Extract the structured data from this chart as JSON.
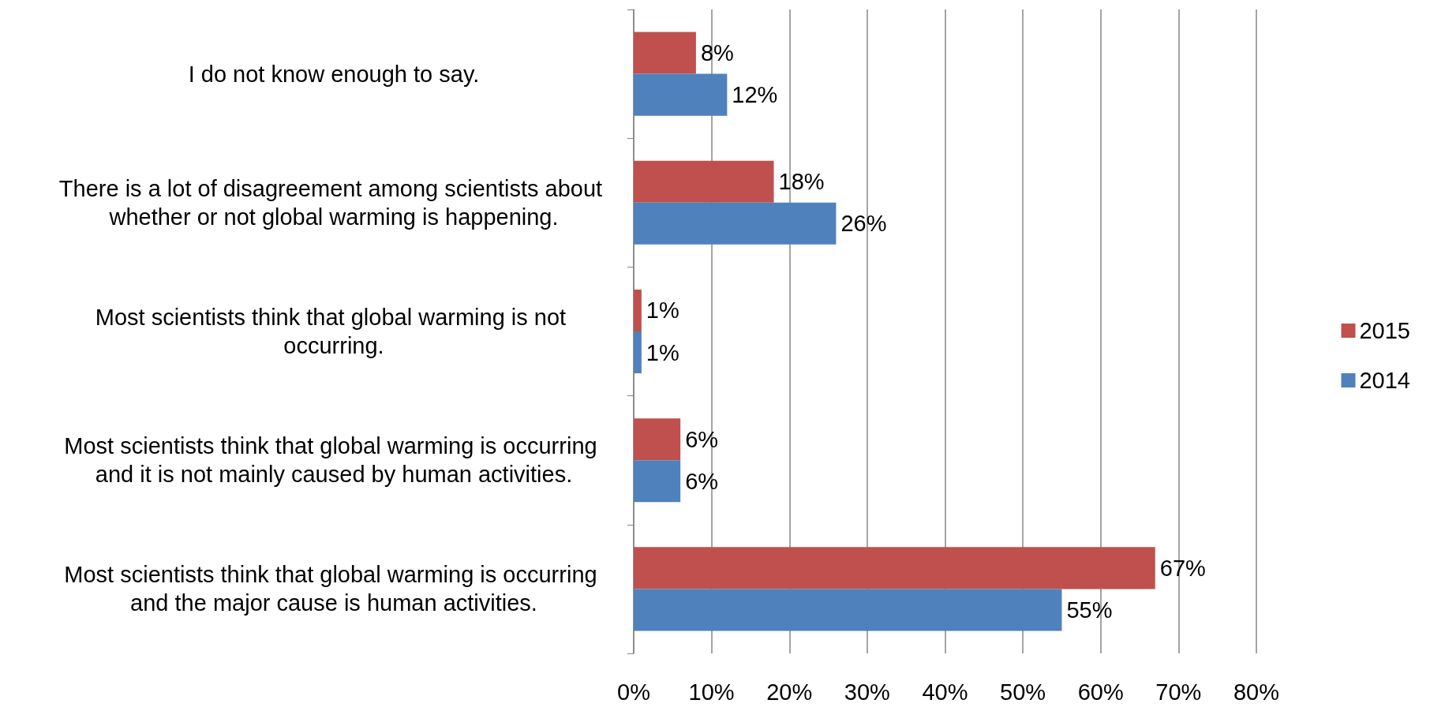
{
  "chart_data": {
    "type": "bar",
    "orientation": "horizontal",
    "categories": [
      "I do not know enough to say.",
      "There is a lot of disagreement among scientists about whether or not global warming is happening.",
      "Most scientists think that global warming is not occurring.",
      "Most scientists think that global warming is occurring and it is not mainly caused by human activities.",
      "Most scientists think that global warming is occurring and the major cause is human activities."
    ],
    "series": [
      {
        "name": "2015",
        "color": "#c0504d",
        "values": [
          8,
          18,
          1,
          6,
          67
        ],
        "value_labels": [
          "8%",
          "18%",
          "1%",
          "6%",
          "67%"
        ]
      },
      {
        "name": "2014",
        "color": "#4f81bd",
        "values": [
          12,
          26,
          1,
          6,
          55
        ],
        "value_labels": [
          "12%",
          "26%",
          "1%",
          "6%",
          "55%"
        ]
      }
    ],
    "xlim": [
      0,
      80
    ],
    "xticks": [
      {
        "value": 0,
        "label": "0%"
      },
      {
        "value": 10,
        "label": "10%"
      },
      {
        "value": 20,
        "label": "20%"
      },
      {
        "value": 30,
        "label": "30%"
      },
      {
        "value": 40,
        "label": "40%"
      },
      {
        "value": 50,
        "label": "50%"
      },
      {
        "value": 60,
        "label": "60%"
      },
      {
        "value": 70,
        "label": "70%"
      },
      {
        "value": 80,
        "label": "80%"
      }
    ],
    "grid": "x",
    "legend": "right"
  }
}
